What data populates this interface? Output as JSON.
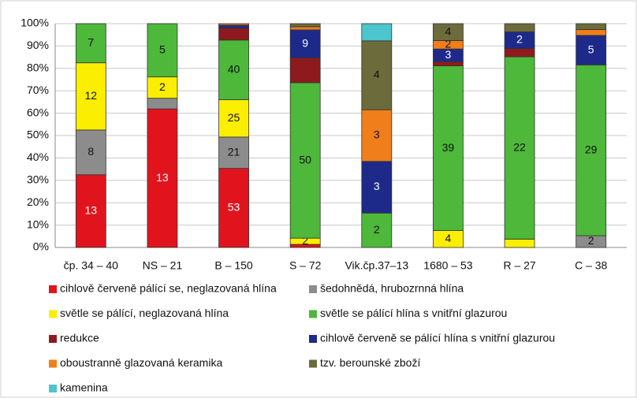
{
  "chart_data": {
    "type": "stacked_percent_bar",
    "categories": [
      "čp. 34 – 40",
      "NS – 21",
      "B – 150",
      "S – 72",
      "Vik.čp.37–13",
      "1680 – 53",
      "R – 27",
      "C – 38"
    ],
    "series": [
      {
        "name": "cihlově červeně pálící se, neglazovaná hlína",
        "color": "#e1141e",
        "values": [
          13,
          13,
          53,
          1,
          0,
          0,
          0,
          0
        ],
        "value_labels": [
          "13",
          "13",
          "53",
          null,
          null,
          null,
          null,
          null
        ]
      },
      {
        "name": "šedohnědá, hrubozrnná hlína",
        "color": "#8c8c8c",
        "values": [
          8,
          1,
          21,
          0,
          0,
          0,
          0,
          2
        ],
        "value_labels": [
          "8",
          null,
          "21",
          null,
          null,
          null,
          null,
          "2"
        ]
      },
      {
        "name": "světle se pálící, neglazovaná hlína",
        "color": "#fcee00",
        "values": [
          12,
          2,
          25,
          2,
          0,
          4,
          1,
          0
        ],
        "value_labels": [
          "12",
          "2",
          "25",
          "2",
          null,
          "4",
          null,
          null
        ]
      },
      {
        "name": "světle se pálící hlína s vnitřní glazurou",
        "color": "#4db83a",
        "values": [
          7,
          5,
          40,
          50,
          2,
          39,
          22,
          29
        ],
        "value_labels": [
          "7",
          "5",
          "40",
          "50",
          "2",
          "39",
          "22",
          "29"
        ]
      },
      {
        "name": "redukce",
        "color": "#8e1a1d",
        "values": [
          0,
          0,
          8,
          8,
          0,
          1,
          1,
          0
        ],
        "value_labels": [
          null,
          null,
          null,
          null,
          null,
          null,
          null,
          null
        ]
      },
      {
        "name": "cihlově červeně se pálící hlína s vnitřní glazurou",
        "color": "#1e2a8a",
        "values": [
          0,
          0,
          2,
          9,
          3,
          3,
          2,
          5
        ],
        "value_labels": [
          null,
          null,
          null,
          "9",
          "3",
          "3",
          "2",
          "5"
        ]
      },
      {
        "name": "oboustranně glazovaná keramika",
        "color": "#f07e1a",
        "values": [
          0,
          0,
          1,
          1,
          3,
          2,
          0,
          1
        ],
        "value_labels": [
          null,
          null,
          null,
          null,
          "3",
          "2",
          null,
          null
        ]
      },
      {
        "name": "tzv. berounské zboží",
        "color": "#6c6b3c",
        "values": [
          0,
          0,
          0,
          1,
          4,
          4,
          1,
          1
        ],
        "value_labels": [
          null,
          null,
          null,
          null,
          "4",
          "4",
          null,
          null
        ]
      },
      {
        "name": "kamenina",
        "color": "#4cc5cc",
        "values": [
          0,
          0,
          0,
          0,
          1,
          0,
          0,
          0
        ],
        "value_labels": [
          null,
          null,
          null,
          null,
          null,
          null,
          null,
          null
        ]
      }
    ],
    "ylim": [
      0,
      100
    ],
    "yticks": [
      {
        "value": 0,
        "label": "0%"
      },
      {
        "value": 10,
        "label": "10%"
      },
      {
        "value": 20,
        "label": "20%"
      },
      {
        "value": 30,
        "label": "30%"
      },
      {
        "value": 40,
        "label": "40%"
      },
      {
        "value": 50,
        "label": "50%"
      },
      {
        "value": 60,
        "label": "60%"
      },
      {
        "value": 70,
        "label": "70%"
      },
      {
        "value": 80,
        "label": "80%"
      },
      {
        "value": 90,
        "label": "90%"
      },
      {
        "value": 100,
        "label": "100%"
      }
    ],
    "grid": true,
    "legend": "bottom"
  }
}
